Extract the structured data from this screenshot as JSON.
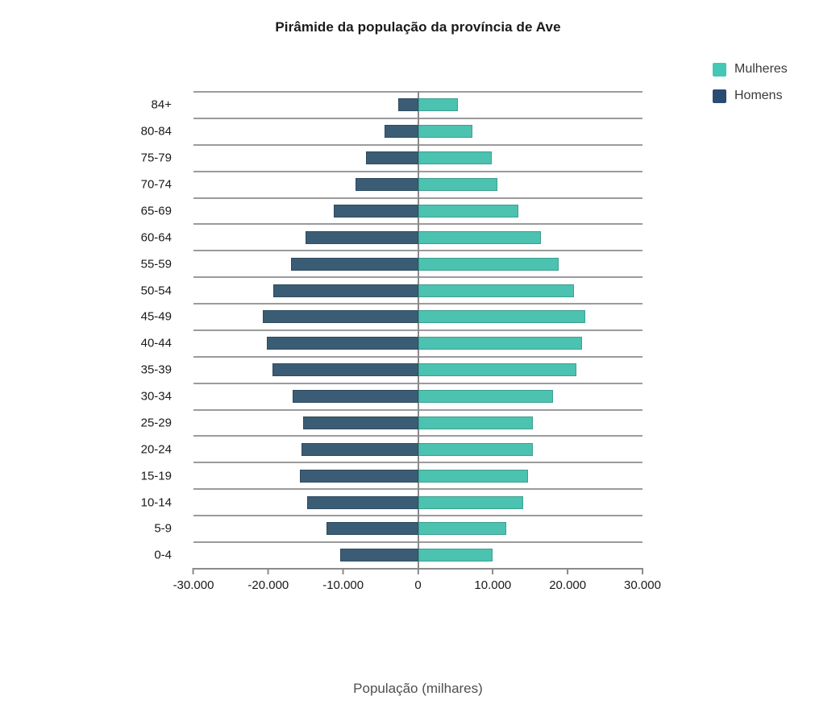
{
  "title": "Pirâmide da população da província de Ave",
  "legend": {
    "position": "top-right",
    "items": [
      {
        "label": "Mulheres",
        "color": "#45c7b5"
      },
      {
        "label": "Homens",
        "color": "#2b4b72"
      }
    ]
  },
  "chart_data": {
    "type": "bar",
    "subtype": "population-pyramid",
    "orientation": "horizontal",
    "title": "Pirâmide da população da província de Ave",
    "xlabel": "População (milhares)",
    "ylabel": "",
    "categories": [
      "84+",
      "80-84",
      "75-79",
      "70-74",
      "65-69",
      "60-64",
      "55-59",
      "50-54",
      "45-49",
      "40-44",
      "35-39",
      "30-34",
      "25-29",
      "20-24",
      "15-19",
      "10-14",
      "5-9",
      "0-4"
    ],
    "series": [
      {
        "name": "Homens",
        "side": "left",
        "color": "#3b5c75",
        "values": [
          -2600,
          -4500,
          -7000,
          -8400,
          -11300,
          -15000,
          -17000,
          -19300,
          -20700,
          -20200,
          -19400,
          -16800,
          -15300,
          -15600,
          -15800,
          -14800,
          -12200,
          -10400
        ]
      },
      {
        "name": "Mulheres",
        "side": "right",
        "color": "#4cc2b0",
        "values": [
          5300,
          7300,
          9900,
          10600,
          13400,
          16400,
          18800,
          20800,
          22400,
          21900,
          21200,
          18000,
          15300,
          15400,
          14700,
          14100,
          11800,
          10000
        ]
      }
    ],
    "xlim": [
      -30000,
      30000
    ],
    "x_ticks": [
      -30000,
      -20000,
      -10000,
      0,
      10000,
      20000,
      30000
    ],
    "x_tick_labels": [
      "-30.000",
      "-20.000",
      "-10.000",
      "0",
      "10.000",
      "20.000",
      "30.000"
    ],
    "grid": "horizontal",
    "gridline_color": "#9b9b9b",
    "axis_color": "#8a8a8a",
    "legend_position": "top-right"
  }
}
